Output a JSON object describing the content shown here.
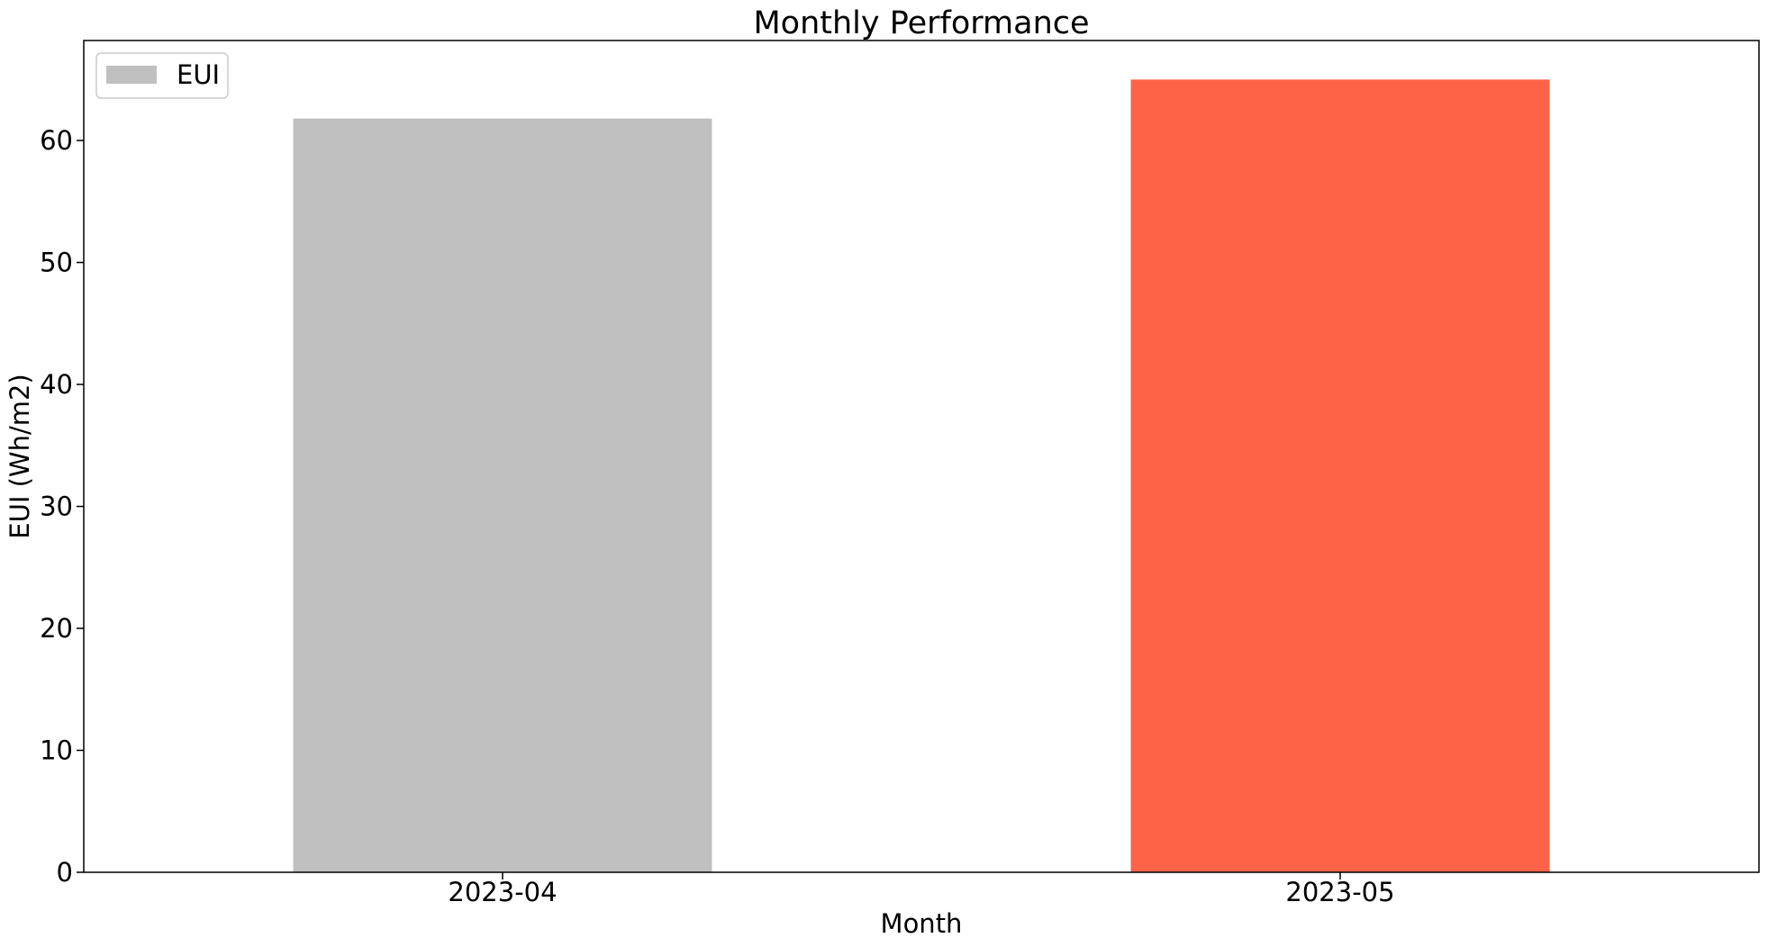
{
  "chart_data": {
    "type": "bar",
    "title": "Monthly Performance",
    "xlabel": "Month",
    "ylabel": "EUI (Wh/m2)",
    "categories": [
      "2023-04",
      "2023-05"
    ],
    "series": [
      {
        "name": "EUI",
        "values": [
          61.8,
          65.0
        ],
        "colors": [
          "#c0c0c0",
          "#ff6347"
        ]
      }
    ],
    "ylim": [
      0,
      68.2
    ],
    "yticks": [
      0,
      10,
      20,
      30,
      40,
      50,
      60
    ],
    "grid": false,
    "legend": {
      "placement": "top-left",
      "entries": [
        {
          "label": "EUI",
          "color": "#c0c0c0"
        }
      ]
    }
  }
}
